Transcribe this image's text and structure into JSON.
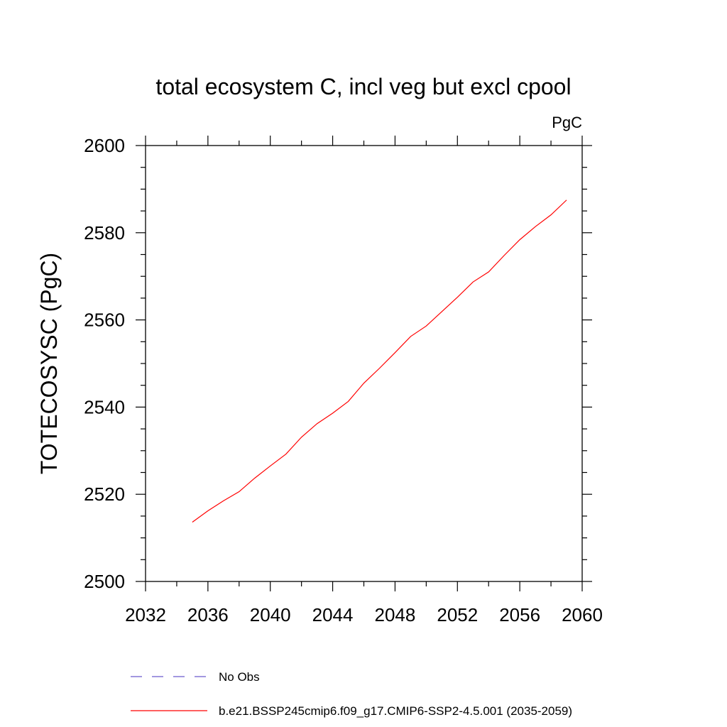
{
  "chart_data": {
    "type": "line",
    "title": "total ecosystem C, incl veg but excl cpool",
    "units": "PgC",
    "xlabel": "",
    "ylabel": "TOTECOSYSC  (PgC)",
    "xlim": [
      2032,
      2060
    ],
    "ylim": [
      2500,
      2600
    ],
    "xticks": [
      2032,
      2036,
      2040,
      2044,
      2048,
      2052,
      2056,
      2060
    ],
    "yticks": [
      2500,
      2520,
      2540,
      2560,
      2580,
      2600
    ],
    "x_minor_step": 2,
    "y_minor_step": 5,
    "grid": false,
    "legend_position": "bottom",
    "series": [
      {
        "name": "No Obs",
        "color": "#6a5acd",
        "dash": "dashed",
        "x": [],
        "y": []
      },
      {
        "name": "b.e21.BSSP245cmip6.f09_g17.CMIP6-SSP2-4.5.001 (2035-2059)",
        "color": "#ff0000",
        "dash": "solid",
        "x": [
          2035,
          2036,
          2037,
          2038,
          2039,
          2040,
          2041,
          2042,
          2043,
          2044,
          2045,
          2046,
          2047,
          2048,
          2049,
          2050,
          2051,
          2052,
          2053,
          2054,
          2055,
          2056,
          2057,
          2058,
          2059
        ],
        "y": [
          2513.6,
          2516.2,
          2518.5,
          2520.6,
          2523.7,
          2526.5,
          2529.2,
          2533.1,
          2536.2,
          2538.6,
          2541.3,
          2545.5,
          2548.9,
          2552.5,
          2556.2,
          2558.6,
          2561.9,
          2565.2,
          2568.7,
          2571.0,
          2574.8,
          2578.4,
          2581.4,
          2584.1,
          2587.5
        ]
      }
    ]
  }
}
